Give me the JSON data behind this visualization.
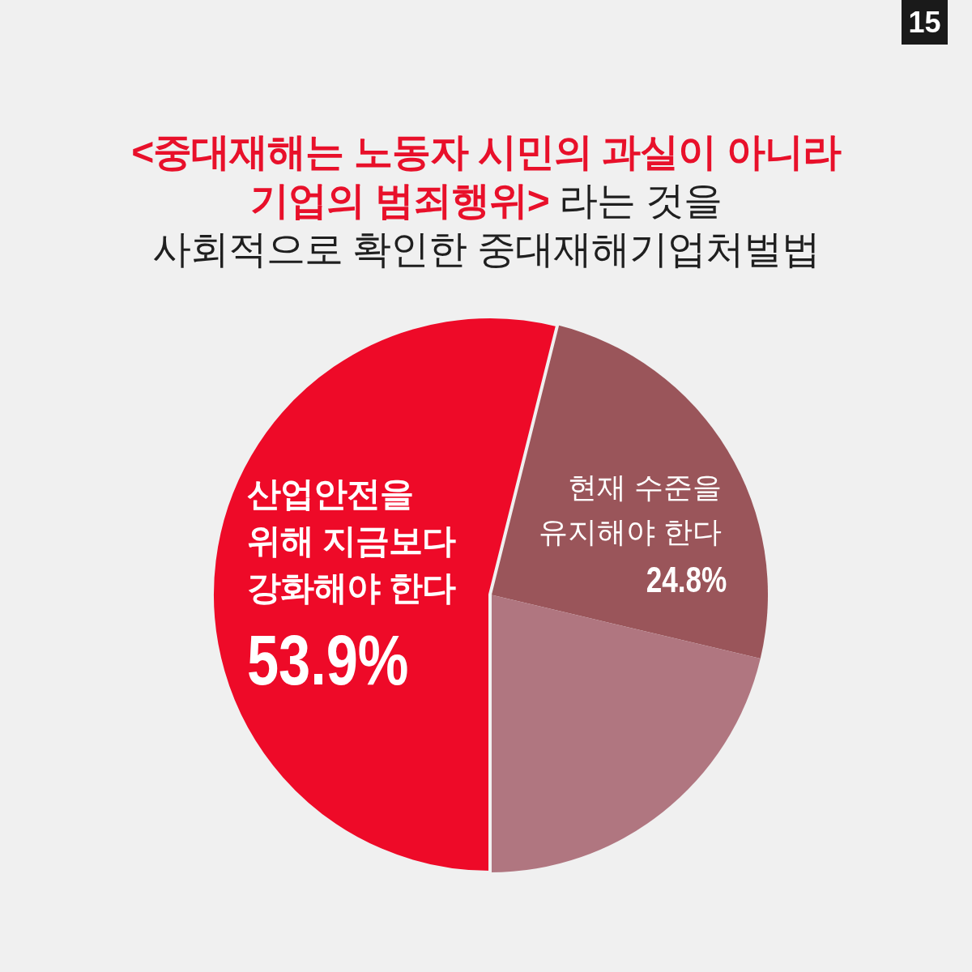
{
  "chart_data": {
    "type": "pie",
    "title": "<중대재해는 노동자 시민의 과실이 아니라\n기업의 범죄행위> 라는 것을\n사회적으로 확인한 중대재해기업처벌법",
    "categories": [
      "산업안전을\n위해 지금보다\n강화해야 한다",
      "현재 수준을\n유지해야 한다",
      null
    ],
    "values": [
      53.9,
      24.8,
      21.3
    ],
    "colors": [
      "#ee0a28",
      "#9a555a",
      "#b07680"
    ],
    "value_labels": [
      "53.9%",
      "24.8%",
      null
    ],
    "annotations": [
      "15"
    ]
  }
}
